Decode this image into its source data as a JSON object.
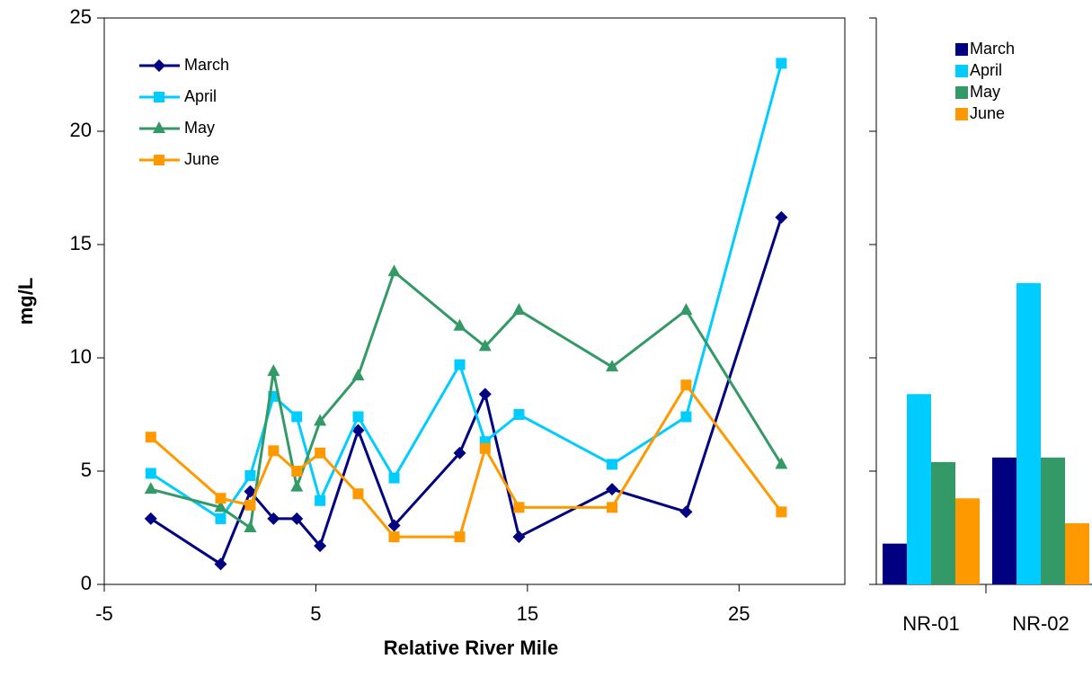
{
  "chart_data": [
    {
      "type": "line",
      "xlabel": "Relative River Mile",
      "ylabel": "mg/L",
      "x": [
        -2.8,
        0.5,
        1.9,
        3.0,
        4.1,
        5.2,
        7.0,
        8.7,
        11.8,
        13.0,
        14.6,
        19.0,
        22.5,
        27.0
      ],
      "series": [
        {
          "name": "March",
          "color": "#000080",
          "marker": "diamond",
          "values": [
            2.9,
            0.9,
            4.1,
            2.9,
            2.9,
            1.7,
            6.8,
            2.6,
            5.8,
            8.4,
            2.1,
            4.2,
            3.2,
            16.2
          ]
        },
        {
          "name": "April",
          "color": "#00ccff",
          "marker": "square",
          "values": [
            4.9,
            2.9,
            4.8,
            8.3,
            7.4,
            3.7,
            7.4,
            4.7,
            9.7,
            6.3,
            7.5,
            5.3,
            7.4,
            23.0
          ]
        },
        {
          "name": "May",
          "color": "#339966",
          "marker": "triangle",
          "values": [
            4.2,
            3.4,
            2.5,
            9.4,
            4.3,
            7.2,
            9.2,
            13.8,
            11.4,
            10.5,
            12.1,
            9.6,
            12.1,
            5.3
          ]
        },
        {
          "name": "June",
          "color": "#ff9900",
          "marker": "square",
          "values": [
            6.5,
            3.8,
            3.5,
            5.9,
            5.0,
            5.8,
            4.0,
            2.1,
            2.1,
            6.0,
            3.4,
            3.4,
            8.8,
            3.2
          ]
        }
      ],
      "xlim": [
        -5,
        30
      ],
      "xticks": [
        -5,
        5,
        15,
        25
      ],
      "ylim": [
        0,
        25
      ],
      "yticks": [
        0,
        5,
        10,
        15,
        20,
        25
      ],
      "legend": "upper-left"
    },
    {
      "type": "bar",
      "categories": [
        "NR-01",
        "NR-02"
      ],
      "series": [
        {
          "name": "March",
          "color": "#000080",
          "values": [
            1.8,
            5.6
          ]
        },
        {
          "name": "April",
          "color": "#00ccff",
          "values": [
            8.4,
            13.3
          ]
        },
        {
          "name": "May",
          "color": "#339966",
          "values": [
            5.4,
            5.6
          ]
        },
        {
          "name": "June",
          "color": "#ff9900",
          "values": [
            3.8,
            2.7
          ]
        }
      ],
      "ylim": [
        0,
        25
      ],
      "legend": "upper-right"
    }
  ]
}
